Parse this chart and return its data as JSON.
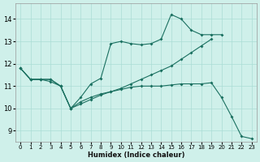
{
  "xlabel": "Humidex (Indice chaleur)",
  "xlim": [
    -0.5,
    23.5
  ],
  "ylim": [
    8.5,
    14.7
  ],
  "yticks": [
    9,
    10,
    11,
    12,
    13,
    14
  ],
  "xticks": [
    0,
    1,
    2,
    3,
    4,
    5,
    6,
    7,
    8,
    9,
    10,
    11,
    12,
    13,
    14,
    15,
    16,
    17,
    18,
    19,
    20,
    21,
    22,
    23
  ],
  "bg_color": "#cff0ea",
  "line_color": "#1a7060",
  "grid_color": "#aaddd5",
  "series": [
    {
      "x": [
        0,
        1,
        2,
        3,
        4,
        5,
        6,
        7,
        8,
        9,
        10,
        11,
        12,
        13,
        14,
        15,
        16,
        17,
        18,
        19,
        20
      ],
      "y": [
        11.8,
        11.3,
        11.3,
        11.2,
        11.0,
        10.0,
        10.5,
        11.1,
        11.35,
        12.9,
        13.0,
        12.9,
        12.85,
        12.9,
        13.1,
        14.2,
        14.0,
        13.5,
        13.3,
        13.3,
        13.3
      ]
    },
    {
      "x": [
        0,
        1,
        2,
        3,
        4,
        5,
        6,
        7,
        8,
        9,
        10,
        11,
        12,
        13,
        14,
        15,
        16,
        17,
        18,
        19,
        20,
        21,
        22,
        23
      ],
      "y": [
        11.8,
        11.3,
        11.3,
        11.3,
        11.0,
        10.0,
        10.3,
        10.5,
        10.65,
        10.75,
        10.85,
        10.95,
        11.0,
        11.0,
        11.0,
        11.05,
        11.1,
        11.1,
        11.1,
        11.15,
        10.5,
        9.65,
        8.75,
        8.65
      ]
    },
    {
      "x": [
        0,
        1,
        2,
        3,
        4,
        5,
        6,
        7,
        8,
        9,
        10,
        11,
        12,
        13,
        14,
        15,
        16,
        17,
        18,
        19
      ],
      "y": [
        11.8,
        11.3,
        11.3,
        11.3,
        11.0,
        10.0,
        10.2,
        10.4,
        10.6,
        10.75,
        10.9,
        11.1,
        11.3,
        11.5,
        11.7,
        11.9,
        12.2,
        12.5,
        12.8,
        13.1
      ]
    }
  ]
}
